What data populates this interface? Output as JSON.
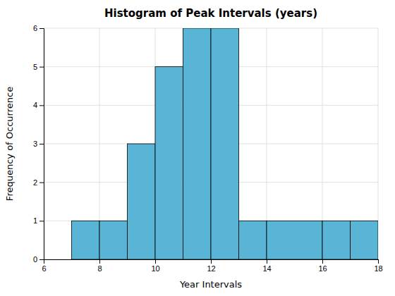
{
  "chart_data": {
    "type": "histogram",
    "title": "Histogram of Peak Intervals (years)",
    "xlabel": "Year Intervals",
    "ylabel": "Frequency of Occurrence",
    "bins": [
      7,
      8,
      9,
      10,
      11,
      12,
      13,
      14,
      16,
      17,
      18
    ],
    "values": [
      1,
      1,
      3,
      5,
      6,
      6,
      1,
      1,
      1,
      1
    ],
    "color": "#5ab4d6",
    "xlim": [
      6,
      18
    ],
    "ylim": [
      0,
      6
    ],
    "xticks": [
      6,
      8,
      10,
      12,
      14,
      16,
      18
    ],
    "yticks": [
      0,
      1,
      2,
      3,
      4,
      5,
      6
    ],
    "grid": true
  }
}
